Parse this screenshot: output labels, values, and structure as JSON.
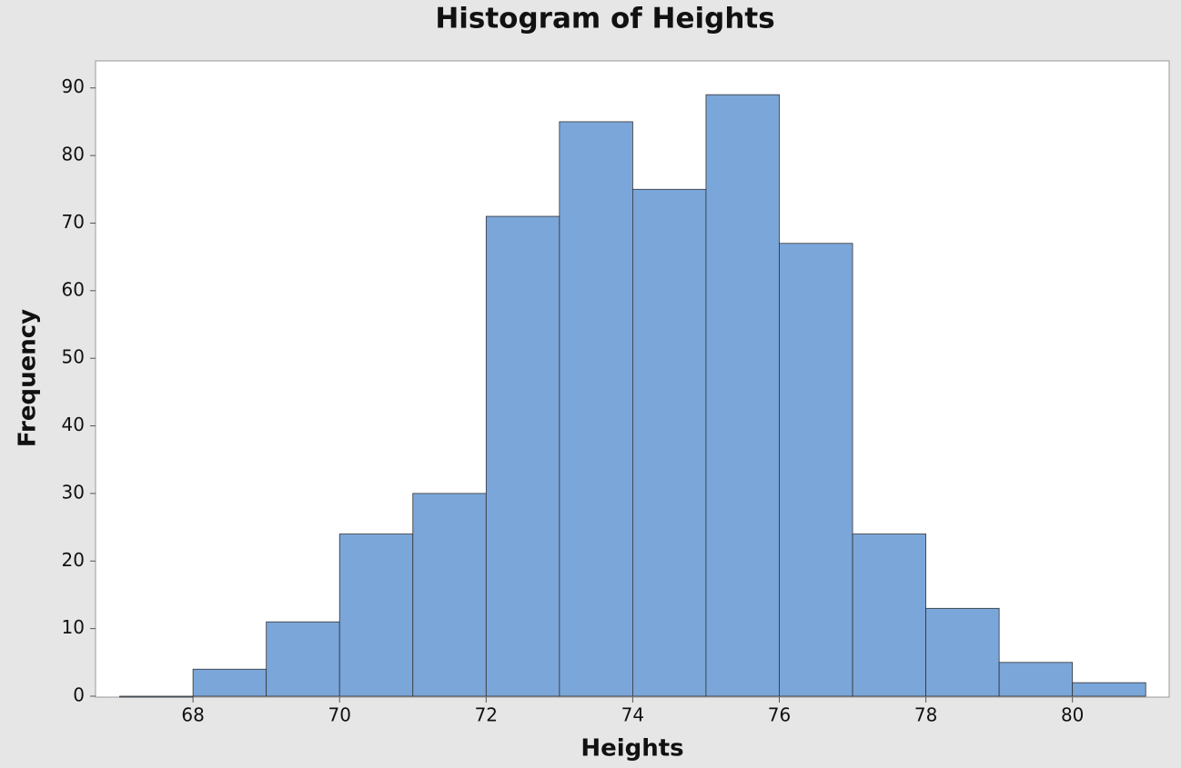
{
  "chart_data": {
    "type": "histogram",
    "title": "Histogram of Heights",
    "x_label": "Heights",
    "y_label": "Frequency",
    "bins": [
      67,
      68,
      69,
      70,
      71,
      72,
      73,
      74,
      75,
      76,
      77,
      78,
      79,
      80,
      81
    ],
    "values": [
      0,
      4,
      11,
      24,
      30,
      71,
      85,
      75,
      89,
      67,
      24,
      13,
      5,
      2
    ],
    "color": "#7ba6d9",
    "xlim": [
      66.67,
      81.32
    ],
    "xticks": [
      68,
      70,
      72,
      74,
      76,
      78,
      80
    ],
    "ylim": [
      0,
      94
    ],
    "yticks": [
      0,
      10,
      20,
      30,
      40,
      50,
      60,
      70,
      80,
      90
    ],
    "grid": false
  }
}
